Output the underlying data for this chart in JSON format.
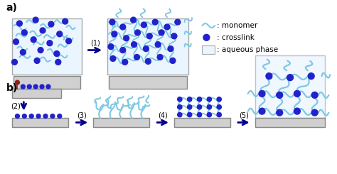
{
  "title_a": "a)",
  "title_b": "b)",
  "legend_items": [
    ": monomer",
    ": crosslink",
    ": aqueous phase"
  ],
  "arrow_color": "#00008B",
  "crosslink_color": "#2222CC",
  "monomer_color": "#7EC8E3",
  "substrate_color": "#D0D0D0",
  "substrate_border": "#888888",
  "aqueous_color": "#EAF5FF",
  "step_labels": [
    "(1)",
    "(2)",
    "(3)",
    "(4)",
    "(5)"
  ],
  "bg_color": "#FFFFFF",
  "pin_color": "#8B2020"
}
